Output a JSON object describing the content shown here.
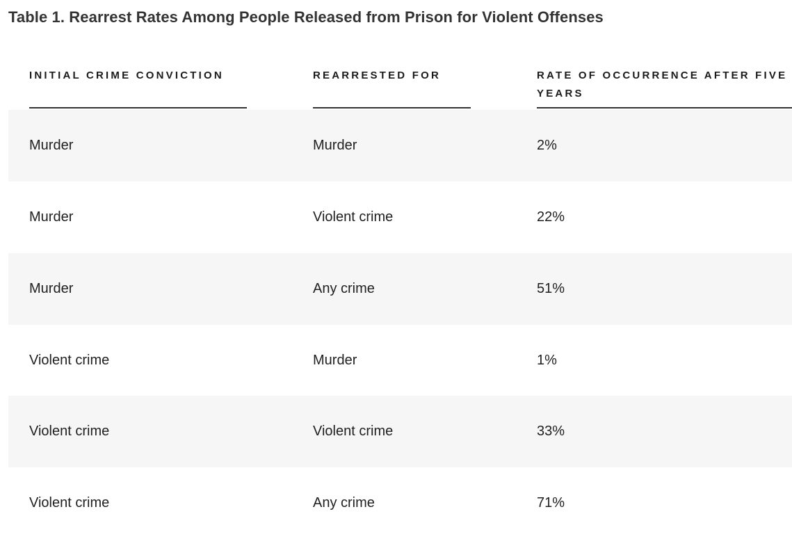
{
  "title": "Table 1. Rearrest Rates Among People Released from Prison for Violent Offenses",
  "columns": {
    "initial": "INITIAL CRIME CONVICTION",
    "rearrested": "REARRESTED FOR",
    "rate": "RATE OF OCCURRENCE AFTER FIVE YEARS"
  },
  "rows": [
    {
      "initial": "Murder",
      "rearrested": "Murder",
      "rate": "2%"
    },
    {
      "initial": "Murder",
      "rearrested": "Violent crime",
      "rate": "22%"
    },
    {
      "initial": "Murder",
      "rearrested": "Any crime",
      "rate": "51%"
    },
    {
      "initial": "Violent crime",
      "rearrested": "Murder",
      "rate": "1%"
    },
    {
      "initial": "Violent crime",
      "rearrested": "Violent crime",
      "rate": "33%"
    },
    {
      "initial": "Violent crime",
      "rearrested": "Any crime",
      "rate": "71%"
    }
  ],
  "colors": {
    "shaded_row": "#f6f6f6",
    "header_rule": "#333333",
    "title_text": "#333333"
  }
}
